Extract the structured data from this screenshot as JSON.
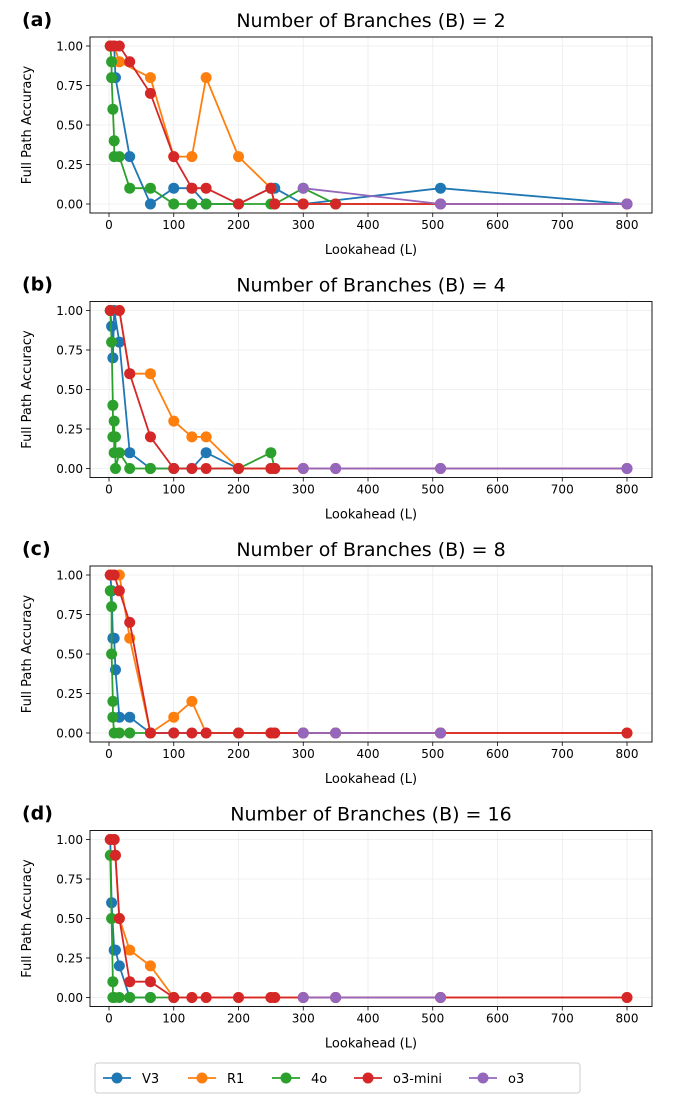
{
  "colors": {
    "V3": "#1f77b4",
    "R1": "#ff7f0e",
    "4o": "#2ca02c",
    "o3-mini": "#d62728",
    "o3": "#9467bd"
  },
  "legend": {
    "placement": "bottom-center",
    "entries": [
      "V3",
      "R1",
      "4o",
      "o3-mini",
      "o3"
    ]
  },
  "chart_data": [
    {
      "type": "line",
      "panel_label": "(a)",
      "title": "Number of Branches (B) = 2",
      "xlabel": "Lookahead (L)",
      "ylabel": "Full Path Accuracy",
      "xlim": [
        -30,
        830
      ],
      "ylim": [
        -0.05,
        1.05
      ],
      "grid": true,
      "xticks": [
        "0",
        "100",
        "200",
        "300",
        "400",
        "500",
        "600",
        "700",
        "800"
      ],
      "yticks": [
        "0.00",
        "0.25",
        "0.50",
        "0.75",
        "1.00"
      ],
      "series": [
        {
          "name": "V3",
          "points": [
            [
              2,
              1
            ],
            [
              4,
              1
            ],
            [
              8,
              1
            ],
            [
              10,
              0.8
            ],
            [
              32,
              0.3
            ],
            [
              64,
              0
            ],
            [
              100,
              0.1
            ],
            [
              128,
              0.1
            ],
            [
              150,
              0
            ],
            [
              200,
              0
            ],
            [
              250,
              0.1
            ],
            [
              256,
              0.1
            ],
            [
              300,
              0
            ],
            [
              512,
              0.1
            ],
            [
              800,
              0
            ]
          ]
        },
        {
          "name": "R1",
          "points": [
            [
              2,
              1
            ],
            [
              8,
              1
            ],
            [
              16,
              0.9
            ],
            [
              64,
              0.8
            ],
            [
              100,
              0.3
            ],
            [
              128,
              0.3
            ],
            [
              150,
              0.8
            ],
            [
              200,
              0.3
            ],
            [
              250,
              0.1
            ],
            [
              256,
              0
            ],
            [
              300,
              0
            ],
            [
              350,
              0
            ],
            [
              512,
              0
            ],
            [
              800,
              0
            ]
          ]
        },
        {
          "name": "4o",
          "points": [
            [
              2,
              1
            ],
            [
              4,
              0.9
            ],
            [
              4,
              0.8
            ],
            [
              6,
              0.6
            ],
            [
              8,
              0.4
            ],
            [
              8,
              0.3
            ],
            [
              16,
              0.3
            ],
            [
              32,
              0.1
            ],
            [
              64,
              0.1
            ],
            [
              100,
              0
            ],
            [
              128,
              0
            ],
            [
              150,
              0
            ],
            [
              200,
              0
            ],
            [
              250,
              0
            ],
            [
              256,
              0
            ],
            [
              300,
              0.1
            ],
            [
              350,
              0
            ]
          ]
        },
        {
          "name": "o3-mini",
          "points": [
            [
              2,
              1
            ],
            [
              8,
              1
            ],
            [
              16,
              1
            ],
            [
              32,
              0.9
            ],
            [
              64,
              0.7
            ],
            [
              100,
              0.3
            ],
            [
              128,
              0.1
            ],
            [
              150,
              0.1
            ],
            [
              200,
              0
            ],
            [
              250,
              0.1
            ],
            [
              256,
              0
            ],
            [
              300,
              0
            ],
            [
              350,
              0
            ],
            [
              512,
              0
            ],
            [
              800,
              0
            ]
          ]
        },
        {
          "name": "o3",
          "points": [
            [
              300,
              0.1
            ],
            [
              512,
              0
            ],
            [
              800,
              0
            ]
          ]
        }
      ]
    },
    {
      "type": "line",
      "panel_label": "(b)",
      "title": "Number of Branches (B) = 4",
      "xlabel": "Lookahead (L)",
      "ylabel": "Full Path Accuracy",
      "xlim": [
        -30,
        830
      ],
      "ylim": [
        -0.05,
        1.05
      ],
      "grid": true,
      "xticks": [
        "0",
        "100",
        "200",
        "300",
        "400",
        "500",
        "600",
        "700",
        "800"
      ],
      "yticks": [
        "0.00",
        "0.25",
        "0.50",
        "0.75",
        "1.00"
      ],
      "series": [
        {
          "name": "V3",
          "points": [
            [
              2,
              1
            ],
            [
              4,
              0.9
            ],
            [
              6,
              0.7
            ],
            [
              8,
              1
            ],
            [
              16,
              0.8
            ],
            [
              32,
              0.1
            ],
            [
              64,
              0
            ],
            [
              100,
              0
            ],
            [
              128,
              0
            ],
            [
              150,
              0.1
            ],
            [
              200,
              0
            ],
            [
              250,
              0
            ],
            [
              256,
              0
            ]
          ]
        },
        {
          "name": "R1",
          "points": [
            [
              2,
              1
            ],
            [
              16,
              1
            ],
            [
              32,
              0.6
            ],
            [
              64,
              0.6
            ],
            [
              100,
              0.3
            ],
            [
              128,
              0.2
            ],
            [
              150,
              0.2
            ],
            [
              200,
              0
            ],
            [
              250,
              0
            ],
            [
              256,
              0
            ],
            [
              300,
              0
            ]
          ]
        },
        {
          "name": "4o",
          "points": [
            [
              2,
              1
            ],
            [
              4,
              0.8
            ],
            [
              6,
              0.4
            ],
            [
              6,
              0.2
            ],
            [
              8,
              0.3
            ],
            [
              8,
              0.1
            ],
            [
              10,
              0.2
            ],
            [
              10,
              0
            ],
            [
              16,
              0.1
            ],
            [
              32,
              0
            ],
            [
              64,
              0
            ],
            [
              100,
              0
            ],
            [
              200,
              0
            ],
            [
              250,
              0.1
            ],
            [
              256,
              0
            ]
          ]
        },
        {
          "name": "o3-mini",
          "points": [
            [
              2,
              1
            ],
            [
              16,
              1
            ],
            [
              32,
              0.6
            ],
            [
              64,
              0.2
            ],
            [
              100,
              0
            ],
            [
              128,
              0
            ],
            [
              150,
              0
            ],
            [
              200,
              0
            ],
            [
              250,
              0
            ],
            [
              256,
              0
            ],
            [
              300,
              0
            ],
            [
              350,
              0
            ],
            [
              512,
              0
            ],
            [
              800,
              0
            ]
          ]
        },
        {
          "name": "o3",
          "points": [
            [
              300,
              0
            ],
            [
              350,
              0
            ],
            [
              512,
              0
            ],
            [
              800,
              0
            ]
          ]
        }
      ]
    },
    {
      "type": "line",
      "panel_label": "(c)",
      "title": "Number of Branches (B) = 8",
      "xlabel": "Lookahead (L)",
      "ylabel": "Full Path Accuracy",
      "xlim": [
        -30,
        830
      ],
      "ylim": [
        -0.05,
        1.05
      ],
      "grid": true,
      "xticks": [
        "0",
        "100",
        "200",
        "300",
        "400",
        "500",
        "600",
        "700",
        "800"
      ],
      "yticks": [
        "0.00",
        "0.25",
        "0.50",
        "0.75",
        "1.00"
      ],
      "series": [
        {
          "name": "V3",
          "points": [
            [
              2,
              1
            ],
            [
              4,
              0.9
            ],
            [
              6,
              0.6
            ],
            [
              8,
              0.6
            ],
            [
              10,
              0.4
            ],
            [
              16,
              0.1
            ],
            [
              32,
              0.1
            ],
            [
              64,
              0
            ],
            [
              100,
              0
            ],
            [
              200,
              0
            ],
            [
              300,
              0
            ],
            [
              512,
              0
            ]
          ]
        },
        {
          "name": "R1",
          "points": [
            [
              2,
              1
            ],
            [
              16,
              1
            ],
            [
              32,
              0.6
            ],
            [
              64,
              0
            ],
            [
              100,
              0.1
            ],
            [
              128,
              0.2
            ],
            [
              150,
              0
            ],
            [
              200,
              0
            ],
            [
              250,
              0
            ],
            [
              256,
              0
            ],
            [
              300,
              0
            ],
            [
              350,
              0
            ],
            [
              512,
              0
            ],
            [
              800,
              0
            ]
          ]
        },
        {
          "name": "4o",
          "points": [
            [
              2,
              0.9
            ],
            [
              4,
              0.8
            ],
            [
              4,
              0.5
            ],
            [
              6,
              0.2
            ],
            [
              6,
              0.1
            ],
            [
              8,
              0
            ],
            [
              16,
              0
            ],
            [
              32,
              0
            ],
            [
              64,
              0
            ]
          ]
        },
        {
          "name": "o3-mini",
          "points": [
            [
              2,
              1
            ],
            [
              8,
              1
            ],
            [
              16,
              0.9
            ],
            [
              32,
              0.7
            ],
            [
              64,
              0
            ],
            [
              100,
              0
            ],
            [
              128,
              0
            ],
            [
              150,
              0
            ],
            [
              200,
              0
            ],
            [
              250,
              0
            ],
            [
              256,
              0
            ],
            [
              300,
              0
            ],
            [
              350,
              0
            ],
            [
              512,
              0
            ],
            [
              800,
              0
            ]
          ]
        },
        {
          "name": "o3",
          "points": [
            [
              300,
              0
            ],
            [
              350,
              0
            ],
            [
              512,
              0
            ]
          ]
        }
      ]
    },
    {
      "type": "line",
      "panel_label": "(d)",
      "title": "Number of Branches (B) = 16",
      "xlabel": "Lookahead (L)",
      "ylabel": "Full Path Accuracy",
      "xlim": [
        -30,
        830
      ],
      "ylim": [
        -0.05,
        1.05
      ],
      "grid": true,
      "xticks": [
        "0",
        "100",
        "200",
        "300",
        "400",
        "500",
        "600",
        "700",
        "800"
      ],
      "yticks": [
        "0.00",
        "0.25",
        "0.50",
        "0.75",
        "1.00"
      ],
      "series": [
        {
          "name": "V3",
          "points": [
            [
              2,
              1
            ],
            [
              4,
              0.6
            ],
            [
              8,
              0.3
            ],
            [
              10,
              0.3
            ],
            [
              16,
              0.2
            ],
            [
              32,
              0
            ],
            [
              64,
              0
            ]
          ]
        },
        {
          "name": "R1",
          "points": [
            [
              2,
              1
            ],
            [
              8,
              1
            ],
            [
              16,
              0.5
            ],
            [
              32,
              0.3
            ],
            [
              64,
              0.2
            ],
            [
              100,
              0
            ],
            [
              128,
              0
            ],
            [
              150,
              0
            ],
            [
              200,
              0
            ],
            [
              250,
              0
            ],
            [
              256,
              0
            ],
            [
              300,
              0
            ],
            [
              350,
              0
            ],
            [
              512,
              0
            ],
            [
              800,
              0
            ]
          ]
        },
        {
          "name": "4o",
          "points": [
            [
              2,
              0.9
            ],
            [
              4,
              0.5
            ],
            [
              6,
              0.1
            ],
            [
              6,
              0
            ],
            [
              8,
              0
            ],
            [
              16,
              0
            ],
            [
              32,
              0
            ],
            [
              64,
              0
            ],
            [
              100,
              0
            ]
          ]
        },
        {
          "name": "o3-mini",
          "points": [
            [
              2,
              1
            ],
            [
              8,
              1
            ],
            [
              10,
              0.9
            ],
            [
              16,
              0.5
            ],
            [
              32,
              0.1
            ],
            [
              64,
              0.1
            ],
            [
              100,
              0
            ],
            [
              128,
              0
            ],
            [
              150,
              0
            ],
            [
              200,
              0
            ],
            [
              250,
              0
            ],
            [
              256,
              0
            ],
            [
              300,
              0
            ],
            [
              350,
              0
            ],
            [
              512,
              0
            ],
            [
              800,
              0
            ]
          ]
        },
        {
          "name": "o3",
          "points": [
            [
              300,
              0
            ],
            [
              350,
              0
            ],
            [
              512,
              0
            ]
          ]
        }
      ]
    }
  ]
}
